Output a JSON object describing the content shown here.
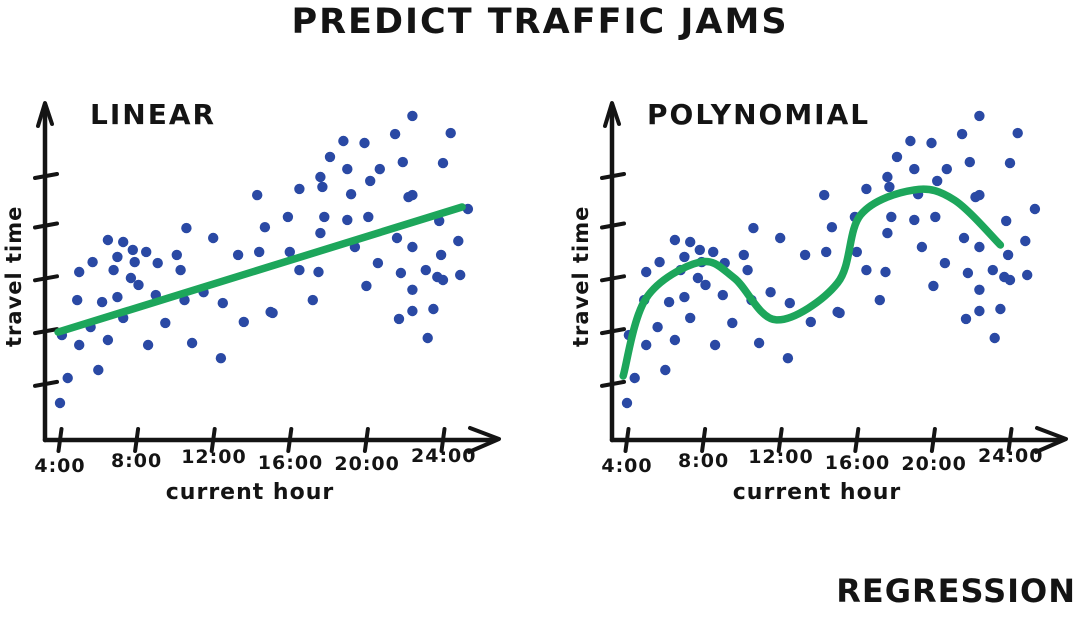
{
  "title": "PREDICT TRAFFIC JAMS",
  "footer_label": "REGRESSION",
  "colors": {
    "ink": "#141414",
    "dot": "#2a49a4",
    "fit": "#1da65b"
  },
  "chart_data": [
    {
      "type": "scatter",
      "title": "LINEAR",
      "xlabel": "current hour",
      "ylabel": "travel time",
      "x_tick_labels": [
        "4:00",
        "8:00",
        "12:00",
        "16:00",
        "20:00",
        "24:00"
      ],
      "x_tick_hours": [
        4,
        8,
        12,
        16,
        20,
        24
      ],
      "y_tick_values": [
        17,
        33,
        49,
        65,
        80
      ],
      "xlim": [
        3,
        27
      ],
      "ylim": [
        0,
        100
      ],
      "grid": false,
      "scatter": [
        [
          5.0,
          50.9
        ],
        [
          5.7,
          53.9
        ],
        [
          6.5,
          60.6
        ],
        [
          6.8,
          51.5
        ],
        [
          7.0,
          55.5
        ],
        [
          7.3,
          60.0
        ],
        [
          7.8,
          57.6
        ],
        [
          7.9,
          53.9
        ],
        [
          8.5,
          57.0
        ],
        [
          9.1,
          53.6
        ],
        [
          10.1,
          56.1
        ],
        [
          10.3,
          51.5
        ],
        [
          10.6,
          64.2
        ],
        [
          12.0,
          61.2
        ],
        [
          13.3,
          56.1
        ],
        [
          14.3,
          74.2
        ],
        [
          14.4,
          57.0
        ],
        [
          14.7,
          64.5
        ],
        [
          7.7,
          49.1
        ],
        [
          16.0,
          57.0
        ],
        [
          22.4,
          98.2
        ],
        [
          24.4,
          93.0
        ],
        [
          21.5,
          92.7
        ],
        [
          18.8,
          90.6
        ],
        [
          19.9,
          90.0
        ],
        [
          18.1,
          85.8
        ],
        [
          21.9,
          84.2
        ],
        [
          24.0,
          83.9
        ],
        [
          19.0,
          82.1
        ],
        [
          20.7,
          82.1
        ],
        [
          17.6,
          79.7
        ],
        [
          20.2,
          78.5
        ],
        [
          17.7,
          76.7
        ],
        [
          16.5,
          76.1
        ],
        [
          19.2,
          74.5
        ],
        [
          22.2,
          73.6
        ],
        [
          22.4,
          74.2
        ],
        [
          25.3,
          70.0
        ],
        [
          15.9,
          67.6
        ],
        [
          17.8,
          67.6
        ],
        [
          19.0,
          66.7
        ],
        [
          20.1,
          67.6
        ],
        [
          23.8,
          66.4
        ],
        [
          17.6,
          62.7
        ],
        [
          21.6,
          61.2
        ],
        [
          24.8,
          60.3
        ],
        [
          22.4,
          58.5
        ],
        [
          19.4,
          58.5
        ],
        [
          23.9,
          56.1
        ],
        [
          20.6,
          53.6
        ],
        [
          16.5,
          51.5
        ],
        [
          17.5,
          50.9
        ],
        [
          21.8,
          50.6
        ],
        [
          23.1,
          51.5
        ],
        [
          23.7,
          49.4
        ],
        [
          24.9,
          50.0
        ],
        [
          4.9,
          42.4
        ],
        [
          6.2,
          41.8
        ],
        [
          7.0,
          43.3
        ],
        [
          7.3,
          37.0
        ],
        [
          8.1,
          47.0
        ],
        [
          9.0,
          43.9
        ],
        [
          5.6,
          34.2
        ],
        [
          4.1,
          31.8
        ],
        [
          5.0,
          28.8
        ],
        [
          6.5,
          30.3
        ],
        [
          9.5,
          35.5
        ],
        [
          8.6,
          28.8
        ],
        [
          10.5,
          42.4
        ],
        [
          10.9,
          29.4
        ],
        [
          11.5,
          44.8
        ],
        [
          12.5,
          41.5
        ],
        [
          12.4,
          24.8
        ],
        [
          13.6,
          35.8
        ],
        [
          15.0,
          38.8
        ],
        [
          6.0,
          21.2
        ],
        [
          4.4,
          18.8
        ],
        [
          4.0,
          11.2
        ],
        [
          20.0,
          46.7
        ],
        [
          17.2,
          42.4
        ],
        [
          15.1,
          38.5
        ],
        [
          22.4,
          45.5
        ],
        [
          24.0,
          48.5
        ],
        [
          22.4,
          39.1
        ],
        [
          23.5,
          39.7
        ],
        [
          21.7,
          36.7
        ],
        [
          23.2,
          30.9
        ]
      ],
      "fit": {
        "kind": "linear",
        "points": [
          [
            3.9,
            32.7
          ],
          [
            25.0,
            70.6
          ]
        ]
      }
    },
    {
      "type": "scatter",
      "title": "POLYNOMIAL",
      "xlabel": "current hour",
      "ylabel": "travel time",
      "x_tick_labels": [
        "4:00",
        "8:00",
        "12:00",
        "16:00",
        "20:00",
        "24:00"
      ],
      "x_tick_hours": [
        4,
        8,
        12,
        16,
        20,
        24
      ],
      "y_tick_values": [
        17,
        33,
        49,
        65,
        80
      ],
      "xlim": [
        3,
        27
      ],
      "ylim": [
        0,
        100
      ],
      "grid": false,
      "scatter": [
        [
          5.0,
          50.9
        ],
        [
          5.7,
          53.9
        ],
        [
          6.5,
          60.6
        ],
        [
          6.8,
          51.5
        ],
        [
          7.0,
          55.5
        ],
        [
          7.3,
          60.0
        ],
        [
          7.8,
          57.6
        ],
        [
          7.9,
          53.9
        ],
        [
          8.5,
          57.0
        ],
        [
          9.1,
          53.6
        ],
        [
          10.1,
          56.1
        ],
        [
          10.3,
          51.5
        ],
        [
          10.6,
          64.2
        ],
        [
          12.0,
          61.2
        ],
        [
          13.3,
          56.1
        ],
        [
          14.3,
          74.2
        ],
        [
          14.4,
          57.0
        ],
        [
          14.7,
          64.5
        ],
        [
          7.7,
          49.1
        ],
        [
          16.0,
          57.0
        ],
        [
          22.4,
          98.2
        ],
        [
          24.4,
          93.0
        ],
        [
          21.5,
          92.7
        ],
        [
          18.8,
          90.6
        ],
        [
          19.9,
          90.0
        ],
        [
          18.1,
          85.8
        ],
        [
          21.9,
          84.2
        ],
        [
          24.0,
          83.9
        ],
        [
          19.0,
          82.1
        ],
        [
          20.7,
          82.1
        ],
        [
          17.6,
          79.7
        ],
        [
          20.2,
          78.5
        ],
        [
          17.7,
          76.7
        ],
        [
          16.5,
          76.1
        ],
        [
          19.2,
          74.5
        ],
        [
          22.2,
          73.6
        ],
        [
          22.4,
          74.2
        ],
        [
          25.3,
          70.0
        ],
        [
          15.9,
          67.6
        ],
        [
          17.8,
          67.6
        ],
        [
          19.0,
          66.7
        ],
        [
          20.1,
          67.6
        ],
        [
          23.8,
          66.4
        ],
        [
          17.6,
          62.7
        ],
        [
          21.6,
          61.2
        ],
        [
          24.8,
          60.3
        ],
        [
          22.4,
          58.5
        ],
        [
          19.4,
          58.5
        ],
        [
          23.9,
          56.1
        ],
        [
          20.6,
          53.6
        ],
        [
          16.5,
          51.5
        ],
        [
          17.5,
          50.9
        ],
        [
          21.8,
          50.6
        ],
        [
          23.1,
          51.5
        ],
        [
          23.7,
          49.4
        ],
        [
          24.9,
          50.0
        ],
        [
          4.9,
          42.4
        ],
        [
          6.2,
          41.8
        ],
        [
          7.0,
          43.3
        ],
        [
          7.3,
          37.0
        ],
        [
          8.1,
          47.0
        ],
        [
          9.0,
          43.9
        ],
        [
          5.6,
          34.2
        ],
        [
          4.1,
          31.8
        ],
        [
          5.0,
          28.8
        ],
        [
          6.5,
          30.3
        ],
        [
          9.5,
          35.5
        ],
        [
          8.6,
          28.8
        ],
        [
          10.5,
          42.4
        ],
        [
          10.9,
          29.4
        ],
        [
          11.5,
          44.8
        ],
        [
          12.5,
          41.5
        ],
        [
          12.4,
          24.8
        ],
        [
          13.6,
          35.8
        ],
        [
          15.0,
          38.8
        ],
        [
          6.0,
          21.2
        ],
        [
          4.4,
          18.8
        ],
        [
          4.0,
          11.2
        ],
        [
          20.0,
          46.7
        ],
        [
          17.2,
          42.4
        ],
        [
          15.1,
          38.5
        ],
        [
          22.4,
          45.5
        ],
        [
          24.0,
          48.5
        ],
        [
          22.4,
          39.1
        ],
        [
          23.5,
          39.7
        ],
        [
          21.7,
          36.7
        ],
        [
          23.2,
          30.9
        ]
      ],
      "fit": {
        "kind": "polynomial",
        "points": [
          [
            3.8,
            19.4
          ],
          [
            5.0,
            43.0
          ],
          [
            7.8,
            53.9
          ],
          [
            9.6,
            49.1
          ],
          [
            11.8,
            36.4
          ],
          [
            15.0,
            47.6
          ],
          [
            16.2,
            68.2
          ],
          [
            19.0,
            75.8
          ],
          [
            21.1,
            72.7
          ],
          [
            23.5,
            59.1
          ]
        ]
      }
    }
  ]
}
